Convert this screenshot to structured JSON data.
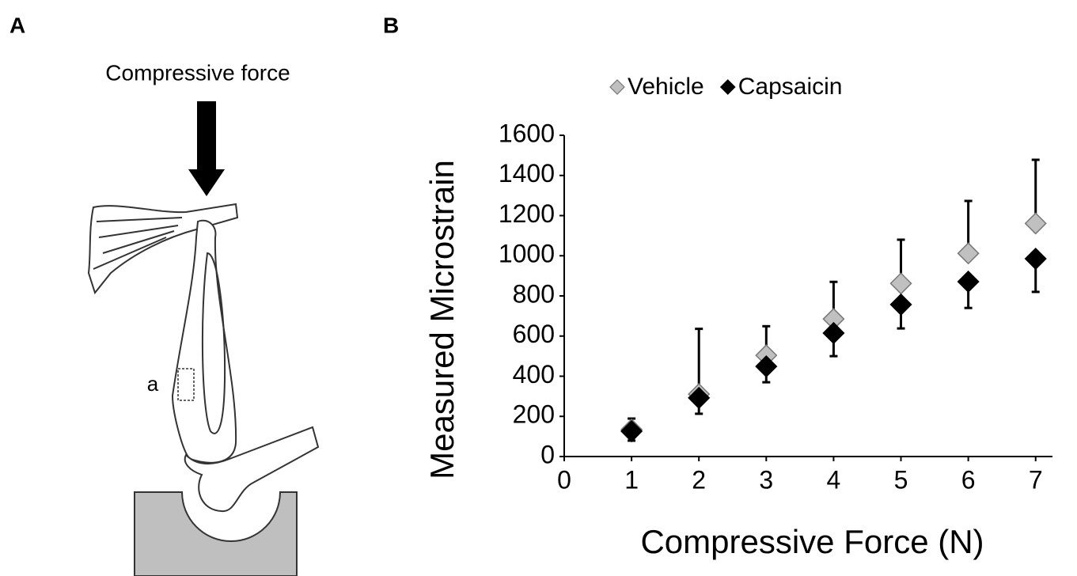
{
  "panel_a": {
    "label": "A",
    "force_label": "Compressive force",
    "region_label": "a"
  },
  "panel_b_label": "B",
  "chart_data": {
    "type": "scatter",
    "x_label": "Compressive Force (N)",
    "y_label": "Measured Microstrain",
    "x": [
      1,
      2,
      3,
      4,
      5,
      6,
      7
    ],
    "series": [
      {
        "name": "Vehicle",
        "color": "#c0c0c0",
        "error_side": "upper",
        "values": [
          134,
          311,
          504,
          685,
          862,
          1012,
          1161
        ],
        "errors": [
          55,
          325,
          145,
          185,
          218,
          261,
          317
        ]
      },
      {
        "name": "Capsaicin",
        "color": "#000000",
        "error_side": "lower",
        "values": [
          126,
          292,
          449,
          615,
          757,
          871,
          985
        ],
        "errors": [
          47,
          79,
          79,
          115,
          119,
          131,
          165
        ]
      }
    ],
    "xlim": [
      0,
      7.25
    ],
    "xticks": [
      0,
      1,
      2,
      3,
      4,
      5,
      6,
      7
    ],
    "ylim": [
      0,
      1600
    ],
    "yticks": [
      0,
      200,
      400,
      600,
      800,
      1000,
      1200,
      1400,
      1600
    ],
    "legend": "top",
    "grid": false
  }
}
